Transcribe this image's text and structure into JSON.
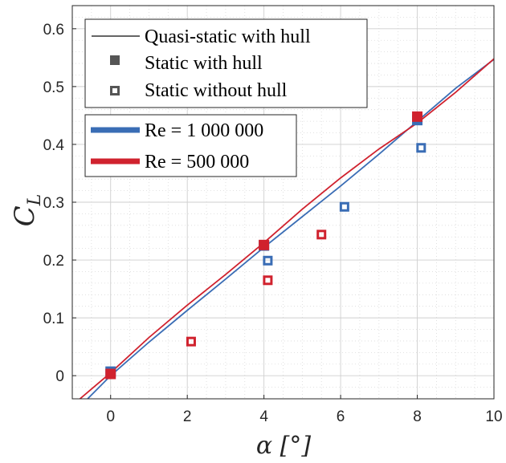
{
  "chart_data": {
    "type": "line",
    "title": "",
    "xlabel": "α [°]",
    "ylabel": "C_L",
    "xlim": [
      -1,
      10
    ],
    "ylim": [
      -0.04,
      0.64
    ],
    "xticks": [
      0,
      2,
      4,
      6,
      8,
      10
    ],
    "yticks": [
      0,
      0.1,
      0.2,
      0.3,
      0.4,
      0.5,
      0.6
    ],
    "xtick_labels": [
      "0",
      "2",
      "4",
      "6",
      "8",
      "10"
    ],
    "ytick_labels": [
      "0",
      "0.1",
      "0.2",
      "0.3",
      "0.4",
      "0.5",
      "0.6"
    ],
    "grid": true,
    "minor_grid": true,
    "style_legend": {
      "placement": "top-left",
      "entries": [
        "Quasi-static with hull",
        "Static with hull",
        "Static without hull"
      ]
    },
    "color_legend": {
      "placement": "top-left",
      "entries": [
        {
          "label": "Re = 1 000 000",
          "color": "#3a6db5"
        },
        {
          "label": "Re = 500 000",
          "color": "#d0222e"
        }
      ]
    },
    "series": [
      {
        "name": "Re = 1 000 000",
        "color": "#3a6db5",
        "quasi_static_with_hull": {
          "x": [
            -0.6,
            0,
            1,
            2,
            3,
            4,
            5,
            6,
            7,
            8,
            9,
            10
          ],
          "y": [
            -0.04,
            0.0,
            0.058,
            0.113,
            0.167,
            0.222,
            0.275,
            0.328,
            0.383,
            0.44,
            0.497,
            0.547
          ]
        },
        "static_with_hull": {
          "x": [
            0,
            4,
            8
          ],
          "y": [
            0.007,
            0.225,
            0.442
          ]
        },
        "static_without_hull": {
          "x": [
            4.1,
            6.1,
            8.1
          ],
          "y": [
            0.199,
            0.292,
            0.394
          ]
        }
      },
      {
        "name": "Re = 500 000",
        "color": "#d0222e",
        "quasi_static_with_hull": {
          "x": [
            -0.8,
            0,
            1,
            2,
            3,
            4,
            5,
            6,
            7,
            8,
            9,
            10
          ],
          "y": [
            -0.04,
            0.005,
            0.066,
            0.122,
            0.175,
            0.23,
            0.288,
            0.342,
            0.392,
            0.437,
            0.49,
            0.548
          ]
        },
        "static_with_hull": {
          "x": [
            0,
            4,
            8
          ],
          "y": [
            0.003,
            0.226,
            0.448
          ]
        },
        "static_without_hull": {
          "x": [
            2.1,
            4.1,
            5.5
          ],
          "y": [
            0.059,
            0.165,
            0.244
          ]
        }
      }
    ]
  }
}
